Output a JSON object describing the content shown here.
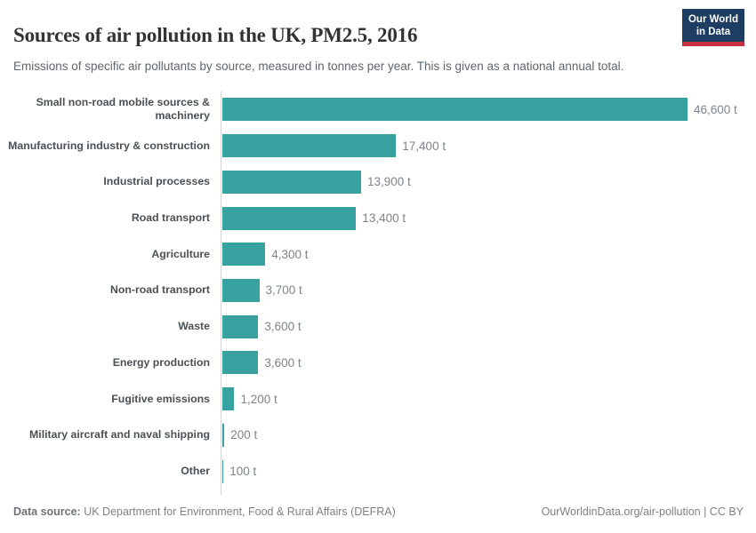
{
  "chart_data": {
    "type": "bar",
    "orientation": "horizontal",
    "title": "Sources of air pollution in the UK, PM2.5, 2016",
    "subtitle": "Emissions of specific air pollutants by source, measured in tonnes per year. This is given as a national annual total.",
    "unit": "t",
    "categories": [
      "Small non-road mobile sources & machinery",
      "Manufacturing industry & construction",
      "Industrial processes",
      "Road transport",
      "Agriculture",
      "Non-road transport",
      "Waste",
      "Energy production",
      "Fugitive emissions",
      "Military aircraft and naval shipping",
      "Other"
    ],
    "values": [
      46600,
      17400,
      13900,
      13400,
      4300,
      3700,
      3600,
      3600,
      1200,
      200,
      100
    ],
    "value_labels": [
      "46,600 t",
      "17,400 t",
      "13,900 t",
      "13,400 t",
      "4,300 t",
      "3,700 t",
      "3,600 t",
      "3,600 t",
      "1,200 t",
      "200 t",
      "100 t"
    ],
    "xlim": [
      0,
      46600
    ],
    "grid": false,
    "legend": "none",
    "bar_color": "#38a2a0"
  },
  "logo": {
    "line1": "Our World",
    "line2": "in Data"
  },
  "footer": {
    "datasource_label": "Data source:",
    "datasource_text": " UK Department for Environment, Food & Rural Affairs (DEFRA)",
    "credit": "OurWorldinData.org/air-pollution | CC BY"
  },
  "colors": {
    "bar": "#38a2a0",
    "axis": "#d4d4d4",
    "logo_bg": "#1d3d63",
    "logo_stripe": "#c7303c",
    "title_text": "#333333",
    "subtitle_text": "#5f666d",
    "category_text": "#4a5156",
    "value_text": "#7d848a"
  }
}
